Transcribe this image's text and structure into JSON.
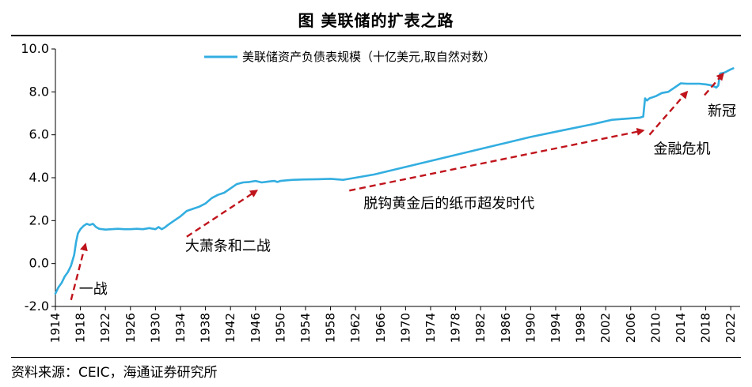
{
  "title": "图  美联储的扩表之路",
  "source": "资料来源：CEIC，海通证券研究所",
  "chart_data": {
    "type": "line",
    "title": "图  美联储的扩表之路",
    "xlabel": "",
    "ylabel": "",
    "xlim": [
      1914,
      2023.5
    ],
    "ylim": [
      -2.0,
      10.0
    ],
    "yticks": [
      "10.0",
      "8.0",
      "6.0",
      "4.0",
      "2.0",
      "0.0",
      "-2.0"
    ],
    "ytick_values": [
      10,
      8,
      6,
      4,
      2,
      0,
      -2
    ],
    "xticks": [
      "1914",
      "1918",
      "1922",
      "1926",
      "1930",
      "1934",
      "1938",
      "1942",
      "1946",
      "1950",
      "1954",
      "1958",
      "1962",
      "1966",
      "1970",
      "1974",
      "1978",
      "1982",
      "1986",
      "1990",
      "1994",
      "1998",
      "2002",
      "2006",
      "2010",
      "2014",
      "2018",
      "2022"
    ],
    "legend": "top-center",
    "series": [
      {
        "name": "美联储资产负债表规模（十亿美元,取自然对数）",
        "color": "#33aee0",
        "x": [
          1914.0,
          1914.5,
          1915.0,
          1915.5,
          1916.0,
          1916.5,
          1917.0,
          1917.3,
          1917.6,
          1918.0,
          1918.5,
          1919.0,
          1919.5,
          1920.0,
          1920.5,
          1921.0,
          1921.5,
          1922.0,
          1923.0,
          1924.0,
          1925.0,
          1926.0,
          1927.0,
          1928.0,
          1929.0,
          1930.0,
          1930.5,
          1931.0,
          1931.5,
          1932.0,
          1932.5,
          1933.0,
          1934.0,
          1935.0,
          1936.0,
          1937.0,
          1938.0,
          1939.0,
          1940.0,
          1941.0,
          1942.0,
          1943.0,
          1944.0,
          1945.0,
          1946.0,
          1947.0,
          1948.0,
          1949.0,
          1949.5,
          1950.0,
          1951.0,
          1952.0,
          1954.0,
          1956.0,
          1958.0,
          1960.0,
          1961.0,
          1962.0,
          1965.0,
          1970.0,
          1975.0,
          1980.0,
          1985.0,
          1990.0,
          1995.0,
          2000.0,
          2003.0,
          2007.5,
          2008.0,
          2008.3,
          2008.6,
          2009.0,
          2010.0,
          2011.0,
          2012.0,
          2013.0,
          2014.0,
          2015.0,
          2017.0,
          2018.0,
          2019.0,
          2019.7,
          2020.0,
          2020.3,
          2021.0,
          2022.0,
          2022.4
        ],
        "values": [
          -1.4,
          -1.1,
          -0.9,
          -0.6,
          -0.4,
          -0.1,
          0.4,
          1.0,
          1.4,
          1.6,
          1.75,
          1.85,
          1.8,
          1.85,
          1.7,
          1.62,
          1.6,
          1.58,
          1.6,
          1.62,
          1.6,
          1.6,
          1.62,
          1.6,
          1.65,
          1.6,
          1.7,
          1.6,
          1.68,
          1.8,
          1.9,
          2.0,
          2.2,
          2.45,
          2.55,
          2.65,
          2.8,
          3.05,
          3.2,
          3.3,
          3.5,
          3.7,
          3.78,
          3.8,
          3.85,
          3.78,
          3.82,
          3.85,
          3.8,
          3.85,
          3.88,
          3.9,
          3.92,
          3.93,
          3.95,
          3.9,
          3.95,
          4.0,
          4.15,
          4.5,
          4.85,
          5.2,
          5.55,
          5.9,
          6.2,
          6.5,
          6.7,
          6.8,
          6.85,
          7.7,
          7.6,
          7.7,
          7.8,
          7.95,
          8.0,
          8.2,
          8.4,
          8.38,
          8.38,
          8.35,
          8.3,
          8.2,
          8.3,
          8.85,
          8.9,
          9.05,
          9.1
        ]
      }
    ],
    "annotations": [
      {
        "text": "一战",
        "arrow_from": [
          1916.5,
          -1.7
        ],
        "arrow_to": [
          1918.8,
          0.9
        ]
      },
      {
        "text": "大萧条和二战",
        "arrow_from": [
          1935.0,
          1.25
        ],
        "arrow_to": [
          1946.2,
          3.4
        ]
      },
      {
        "text": "脱钩黄金后的纸币超发时代",
        "arrow_from": [
          1961.0,
          3.4
        ],
        "arrow_to": [
          2008.0,
          6.2
        ]
      },
      {
        "text": "金融危机",
        "arrow_from": [
          2009.0,
          6.0
        ],
        "arrow_to": [
          2015.0,
          8.0
        ]
      },
      {
        "text": "新冠",
        "arrow_from": [
          2017.8,
          7.85
        ],
        "arrow_to": [
          2020.8,
          8.85
        ]
      }
    ]
  }
}
